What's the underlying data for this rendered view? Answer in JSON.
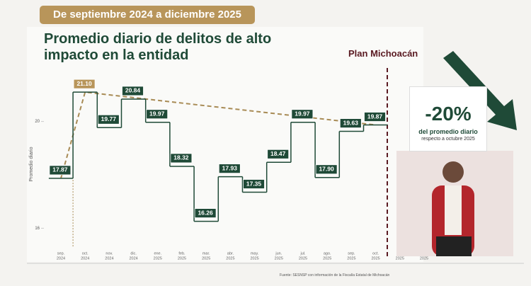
{
  "chart_data": {
    "type": "step",
    "subtitle": "De septiembre 2024 a diciembre 2025",
    "title": "Promedio diario de delitos de alto impacto en la entidad",
    "ylabel": "Promedio diario",
    "annotation": "Plan Michoacán",
    "callout": {
      "headline": "-20%",
      "line1": "del promedio diario",
      "line2": "respecto a octubre 2025"
    },
    "source": "Fuente: SESNSP con información de la Fiscalía Estatal de Michoacán",
    "categories": [
      "sep.",
      "oct.",
      "nov.",
      "dic.",
      "ene.",
      "feb.",
      "mar.",
      "abr.",
      "may.",
      "jun.",
      "jul.",
      "ago.",
      "sep.",
      "oct.",
      null,
      null
    ],
    "category_years": [
      "2024",
      "2024",
      "2024",
      "2024",
      "2025",
      "2025",
      "2025",
      "2025",
      "2025",
      "2025",
      "2025",
      "2025",
      "2025",
      "2025",
      "2025",
      "2025"
    ],
    "values": [
      17.87,
      21.1,
      19.77,
      20.84,
      19.97,
      18.32,
      16.26,
      17.93,
      17.35,
      18.47,
      19.97,
      17.9,
      19.63,
      19.87,
      null,
      null
    ],
    "value_labels": [
      "17.87",
      "21.10",
      "19.77",
      "20.84",
      "19.97",
      "18.32",
      "16.26",
      "17.93",
      "17.35",
      "18.47",
      "19.97",
      "17.90",
      "19.63",
      "19.87",
      null,
      null
    ],
    "color": "#1f4a37",
    "peak_color": "#b8955a",
    "trend_color": "#a88b55",
    "ylim": [
      15.4,
      21.9
    ],
    "yticks": [
      16,
      20
    ]
  }
}
